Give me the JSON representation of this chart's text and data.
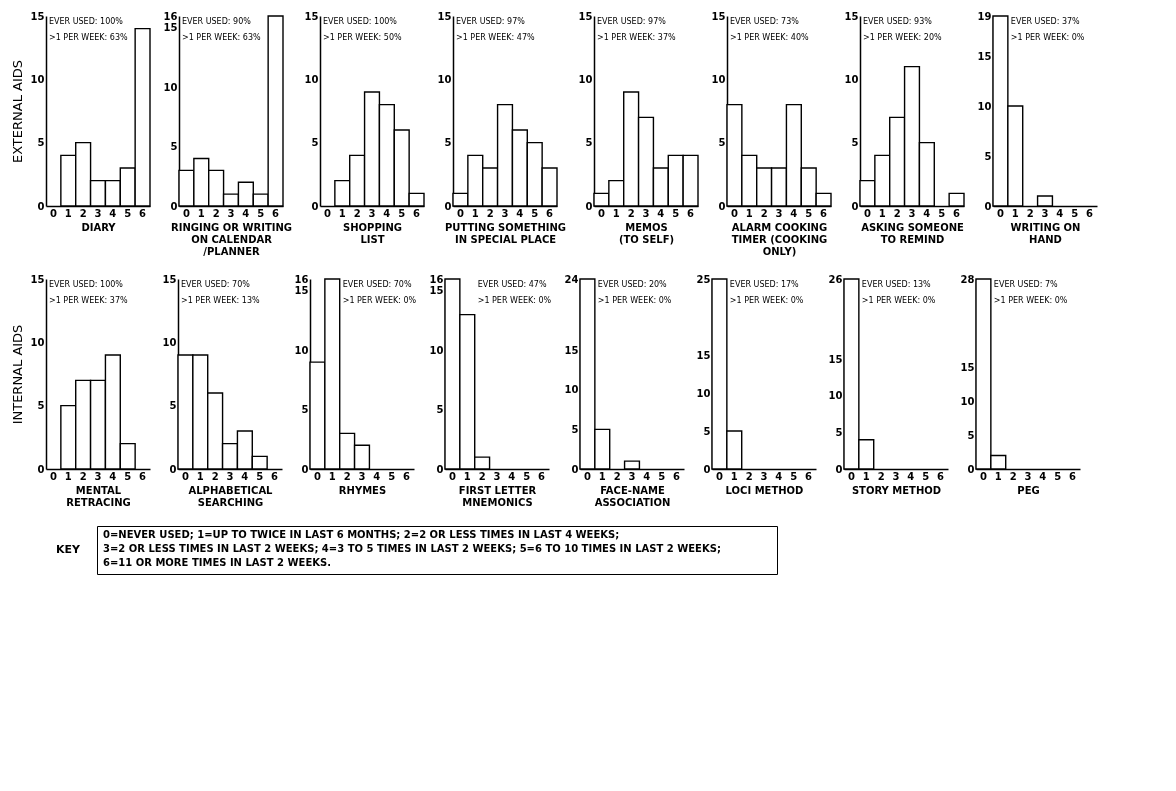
{
  "chart_data": [
    {
      "type": "bar",
      "xlabel": "DIARY",
      "ylabel": "EXTERNAL AIDS",
      "categories": [
        "0",
        "1",
        "2",
        "3",
        "4",
        "5",
        "6"
      ],
      "values": [
        0,
        4,
        5,
        2,
        2,
        3,
        14
      ],
      "color": "#ffffff",
      "ylim": [
        0,
        15
      ],
      "yticks": [
        0,
        5,
        10,
        15
      ],
      "annotations": [
        "EVER USED: 100%",
        ">1 PER WEEK: 63%"
      ]
    },
    {
      "type": "bar",
      "xlabel": "RINGING OR WRITING\nON CALENDAR\n/PLANNER",
      "categories": [
        "0",
        "1",
        "2",
        "3",
        "4",
        "5",
        "6"
      ],
      "values": [
        3,
        4,
        3,
        1,
        2,
        1,
        16
      ],
      "color": "#ffffff",
      "ylim": [
        0,
        16
      ],
      "yticks": [
        0,
        5,
        10,
        15,
        16
      ],
      "annotations": [
        "EVER USED: 90%",
        ">1 PER WEEK: 63%"
      ]
    },
    {
      "type": "bar",
      "xlabel": "SHOPPING\nLIST",
      "categories": [
        "0",
        "1",
        "2",
        "3",
        "4",
        "5",
        "6"
      ],
      "values": [
        0,
        2,
        4,
        9,
        8,
        6,
        1
      ],
      "color": "#ffffff",
      "ylim": [
        0,
        15
      ],
      "yticks": [
        0,
        5,
        10,
        15
      ],
      "annotations": [
        "EVER USED: 100%",
        ">1 PER WEEK: 50%"
      ]
    },
    {
      "type": "bar",
      "xlabel": "PUTTING SOMETHING\nIN SPECIAL PLACE",
      "categories": [
        "0",
        "1",
        "2",
        "3",
        "4",
        "5",
        "6"
      ],
      "values": [
        1,
        4,
        3,
        8,
        6,
        5,
        3
      ],
      "color": "#ffffff",
      "ylim": [
        0,
        15
      ],
      "yticks": [
        0,
        5,
        10,
        15
      ],
      "annotations": [
        "EVER USED: 97%",
        ">1 PER WEEK: 47%"
      ]
    },
    {
      "type": "bar",
      "xlabel": "MEMOS\n(TO SELF)",
      "categories": [
        "0",
        "1",
        "2",
        "3",
        "4",
        "5",
        "6"
      ],
      "values": [
        1,
        2,
        9,
        7,
        3,
        4,
        4
      ],
      "color": "#ffffff",
      "ylim": [
        0,
        15
      ],
      "yticks": [
        0,
        5,
        10,
        15
      ],
      "annotations": [
        "EVER USED: 97%",
        ">1 PER WEEK: 37%"
      ]
    },
    {
      "type": "bar",
      "xlabel": "ALARM COOKING\nTIMER (COOKING\nONLY)",
      "categories": [
        "0",
        "1",
        "2",
        "3",
        "4",
        "5",
        "6"
      ],
      "values": [
        8,
        4,
        3,
        3,
        8,
        3,
        1
      ],
      "color": "#ffffff",
      "ylim": [
        0,
        15
      ],
      "yticks": [
        0,
        5,
        10,
        15
      ],
      "annotations": [
        "EVER USED: 73%",
        ">1 PER WEEK: 40%"
      ]
    },
    {
      "type": "bar",
      "xlabel": "ASKING SOMEONE\nTO REMIND",
      "categories": [
        "0",
        "1",
        "2",
        "3",
        "4",
        "5",
        "6"
      ],
      "values": [
        2,
        4,
        7,
        11,
        5,
        0,
        1
      ],
      "color": "#ffffff",
      "ylim": [
        0,
        15
      ],
      "yticks": [
        0,
        5,
        10,
        15
      ],
      "annotations": [
        "EVER USED: 93%",
        ">1 PER WEEK: 20%"
      ]
    },
    {
      "type": "bar",
      "xlabel": "WRITING ON\nHAND",
      "categories": [
        "0",
        "1",
        "2",
        "3",
        "4",
        "5",
        "6"
      ],
      "values": [
        19,
        10,
        0,
        1,
        0,
        0,
        0
      ],
      "color": "#ffffff",
      "ylim": [
        0,
        19
      ],
      "yticks": [
        0,
        5,
        10,
        15,
        19
      ],
      "annotations": [
        "EVER USED: 37%",
        ">1 PER WEEK: 0%"
      ]
    },
    {
      "type": "bar",
      "xlabel": "MENTAL\nRETRACING",
      "ylabel": "INTERNAL AIDS",
      "categories": [
        "0",
        "1",
        "2",
        "3",
        "4",
        "5",
        "6"
      ],
      "values": [
        0,
        5,
        7,
        7,
        9,
        2,
        0
      ],
      "color": "#ffffff",
      "ylim": [
        0,
        15
      ],
      "yticks": [
        0,
        5,
        10,
        15
      ],
      "annotations": [
        "EVER USED: 100%",
        ">1 PER WEEK: 37%"
      ]
    },
    {
      "type": "bar",
      "xlabel": "ALPHABETICAL\nSEARCHING",
      "categories": [
        "0",
        "1",
        "2",
        "3",
        "4",
        "5",
        "6"
      ],
      "values": [
        9,
        9,
        6,
        2,
        3,
        1,
        0
      ],
      "color": "#ffffff",
      "ylim": [
        0,
        15
      ],
      "yticks": [
        0,
        5,
        10,
        15
      ],
      "annotations": [
        "EVER USED: 70%",
        ">1 PER WEEK: 13%"
      ]
    },
    {
      "type": "bar",
      "xlabel": "RHYMES",
      "categories": [
        "0",
        "1",
        "2",
        "3",
        "4",
        "5",
        "6"
      ],
      "values": [
        9,
        16,
        3,
        2,
        0,
        0,
        0
      ],
      "color": "#ffffff",
      "ylim": [
        0,
        16
      ],
      "yticks": [
        0,
        5,
        10,
        15,
        16
      ],
      "annotations": [
        "EVER USED: 70%",
        ">1 PER WEEK: 0%"
      ]
    },
    {
      "type": "bar",
      "xlabel": "FIRST LETTER\nMNEMONICS",
      "categories": [
        "0",
        "1",
        "2",
        "3",
        "4",
        "5",
        "6"
      ],
      "values": [
        16,
        13,
        1,
        0,
        0,
        0,
        0
      ],
      "color": "#ffffff",
      "ylim": [
        0,
        16
      ],
      "yticks": [
        0,
        5,
        10,
        15,
        16
      ],
      "annotations": [
        "EVER USED: 47%",
        ">1 PER WEEK: 0%"
      ]
    },
    {
      "type": "bar",
      "xlabel": "FACE-NAME\nASSOCIATION",
      "categories": [
        "0",
        "1",
        "2",
        "3",
        "4",
        "5",
        "6"
      ],
      "values": [
        24,
        5,
        0,
        1,
        0,
        0,
        0
      ],
      "color": "#ffffff",
      "ylim": [
        0,
        24
      ],
      "yticks": [
        0,
        5,
        10,
        15,
        24
      ],
      "annotations": [
        "EVER USED: 20%",
        ">1 PER WEEK: 0%"
      ]
    },
    {
      "type": "bar",
      "xlabel": "LOCI METHOD",
      "categories": [
        "0",
        "1",
        "2",
        "3",
        "4",
        "5",
        "6"
      ],
      "values": [
        25,
        5,
        0,
        0,
        0,
        0,
        0
      ],
      "color": "#ffffff",
      "ylim": [
        0,
        25
      ],
      "yticks": [
        0,
        5,
        10,
        15,
        25
      ],
      "annotations": [
        "EVER USED: 17%",
        ">1 PER WEEK: 0%"
      ]
    },
    {
      "type": "bar",
      "xlabel": "STORY METHOD",
      "categories": [
        "0",
        "1",
        "2",
        "3",
        "4",
        "5",
        "6"
      ],
      "values": [
        26,
        4,
        0,
        0,
        0,
        0,
        0
      ],
      "color": "#ffffff",
      "ylim": [
        0,
        26
      ],
      "yticks": [
        0,
        5,
        10,
        15,
        26
      ],
      "annotations": [
        "EVER USED: 13%",
        ">1 PER WEEK: 0%"
      ]
    },
    {
      "type": "bar",
      "xlabel": "PEG",
      "categories": [
        "0",
        "1",
        "2",
        "3",
        "4",
        "5",
        "6"
      ],
      "values": [
        28,
        2,
        0,
        0,
        0,
        0,
        0
      ],
      "color": "#ffffff",
      "ylim": [
        0,
        28
      ],
      "yticks": [
        0,
        5,
        10,
        15,
        28
      ],
      "annotations": [
        "EVER USED: 7%",
        ">1 PER WEEK: 0%"
      ]
    },
    {
      "type": "other",
      "title": "KEY",
      "annotations": [
        "0=NEVER USED; 1=UP TO TWICE IN LAST 6 MONTHS; 2=2 OR LESS TIMES IN LAST 4 WEEKS;",
        "3=2 OR LESS TIMES IN LAST 2 WEEKS; 4=3 TO 5 TIMES IN LAST 2 WEEKS; 5=6 TO 10 TIMES IN LAST 2 WEEKS;",
        "6=11 OR MORE TIMES IN LAST 2 WEEKS."
      ]
    }
  ]
}
